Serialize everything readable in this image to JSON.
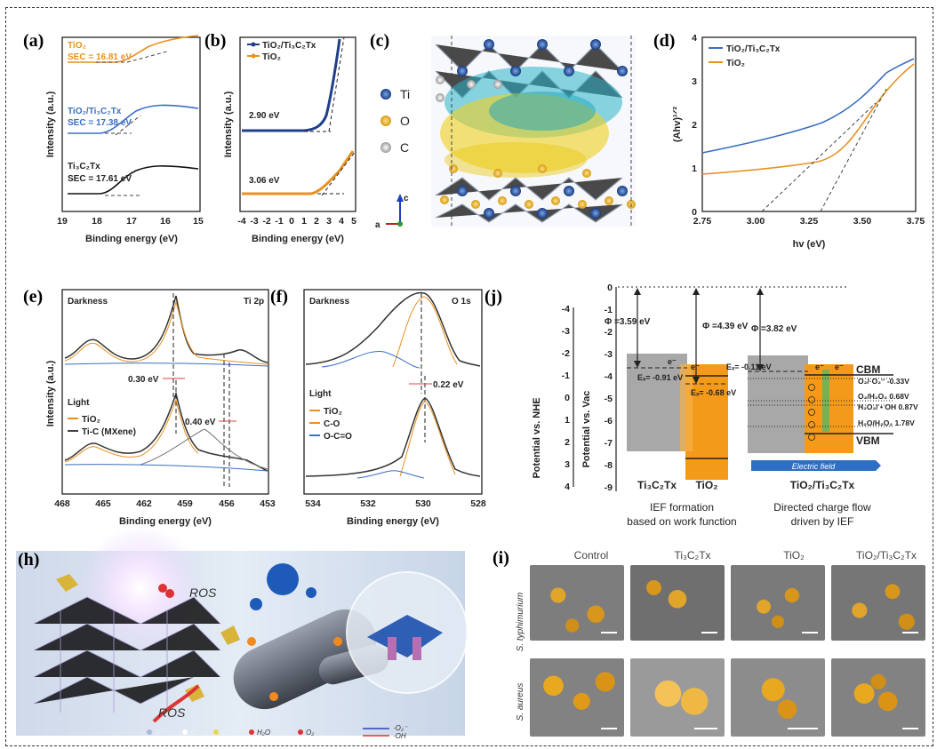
{
  "labels": {
    "a": "(a)",
    "b": "(b)",
    "c": "(c)",
    "d": "(d)",
    "e": "(e)",
    "f": "(f)",
    "j": "(j)",
    "h": "(h)",
    "i": "(i)"
  },
  "panel_a": {
    "xlabel": "Binding energy (eV)",
    "ylabel": "Intensity (a.u.)",
    "xticks": [
      "19",
      "18",
      "17",
      "16",
      "15"
    ],
    "legend": [
      {
        "name": "TiO₂",
        "sec": "SEC = 16.81 eV",
        "color": "#e8911f"
      },
      {
        "name": "TiO₂/Ti₃C₂Tx",
        "sec": "SEC = 17.38 eV",
        "color": "#3b6fc2"
      },
      {
        "name": "Ti₃C₂Tx",
        "sec": "SEC = 17.61 eV",
        "color": "#111111"
      }
    ]
  },
  "panel_b": {
    "xlabel": "Binding energy (eV)",
    "ylabel": "Intensity (a.u.)",
    "xticks": [
      "-4",
      "-3",
      "-2",
      "-1",
      "0",
      "1",
      "2",
      "3",
      "4",
      "5"
    ],
    "legend": [
      {
        "name": "TiO₂/Ti₃C₂Tx",
        "color": "#1f3f8a"
      },
      {
        "name": "TiO₂",
        "color": "#e8911f"
      }
    ],
    "annotations": [
      "2.90 eV",
      "3.06 eV"
    ]
  },
  "panel_c": {
    "atoms": [
      {
        "name": "Ti",
        "color": "#1f4f9a"
      },
      {
        "name": "O",
        "color": "#e8b21f"
      },
      {
        "name": "C",
        "color": "#d8d8d8"
      }
    ],
    "axis_c": "c",
    "axis_a": "a"
  },
  "panel_d": {
    "xlabel": "hv (eV)",
    "ylabel": "(Ahv)¹ᐟ²",
    "xticks": [
      "2.75",
      "3.00",
      "3.25",
      "3.50",
      "3.75"
    ],
    "yticks": [
      "0",
      "1",
      "2",
      "3",
      "4"
    ],
    "legend": [
      {
        "name": "TiO₂/Ti₃C₂Tx",
        "color": "#3b6fc2"
      },
      {
        "name": "TiO₂",
        "color": "#e8911f"
      }
    ]
  },
  "panel_e": {
    "xlabel": "Binding energy (eV)",
    "ylabel": "Intensity (a.u.)",
    "xticks": [
      "468",
      "465",
      "462",
      "459",
      "456",
      "453"
    ],
    "dark": "Darkness",
    "light": "Light",
    "region": "Ti 2p",
    "shifts": [
      "0.30 eV",
      "0.40 eV"
    ],
    "legend": [
      {
        "name": "TiO₂",
        "color": "#e8911f"
      },
      {
        "name": "Ti-C (MXene)",
        "color": "#444444"
      }
    ]
  },
  "panel_f": {
    "xlabel": "Binding energy (eV)",
    "xticks": [
      "534",
      "532",
      "530",
      "528"
    ],
    "dark": "Darkness",
    "light": "Light",
    "region": "O 1s",
    "shift": "0.22 eV",
    "legend": [
      {
        "name": "TiO₂",
        "color": "#e8911f"
      },
      {
        "name": "C-O",
        "color": "#e8911f"
      },
      {
        "name": "O-C=O",
        "color": "#3b6fc2"
      }
    ]
  },
  "panel_j": {
    "nhe_label": "Potential vs. NHE",
    "vac_label": "Potential vs. Vac",
    "nhe_ticks": [
      "-4",
      "-3",
      "-2",
      "-1",
      "0",
      "1",
      "2",
      "3",
      "4"
    ],
    "vac_ticks": [
      "0",
      "-1",
      "-2",
      "-3",
      "-4",
      "-5",
      "-6",
      "-7",
      "-8",
      "-9"
    ],
    "phi": [
      "Φ =3.59 eV",
      "Φ =4.39 eV",
      "Φ =3.82 eV"
    ],
    "ef": [
      "Eₓ= -0.91 eV",
      "Eₓ= -0.11 eV",
      "Eₓ= -0.68 eV"
    ],
    "levels": [
      "O₂/·O₂⁻ -0.33V",
      "O₂/H₂O₂ 0.68V",
      "H₂O₂/ • OH 0.87V",
      "H₂O/H₂O₂ 1.78V"
    ],
    "cbm": "CBM",
    "vbm": "VBM",
    "field": "Electric field",
    "electron": "e⁻",
    "materials": [
      "Ti₃C₂Tx",
      "TiO₂",
      "TiO₂/Ti₃C₂Tx"
    ],
    "captions": [
      "IEF formation",
      "based on work function",
      "Directed charge flow",
      "driven by IEF"
    ]
  },
  "panel_h": {
    "ros": [
      "ROS",
      "ROS"
    ],
    "legend": [
      "Ti",
      "C",
      "O",
      "H₂O",
      "O₂",
      "·O₂⁻",
      "·OH"
    ]
  },
  "panel_i": {
    "columns": [
      "Control",
      "Ti₃C₂Tx",
      "TiO₂",
      "TiO₂/Ti₃C₂Tx"
    ],
    "rows": [
      "S. typhimurium",
      "S. aureus"
    ]
  }
}
